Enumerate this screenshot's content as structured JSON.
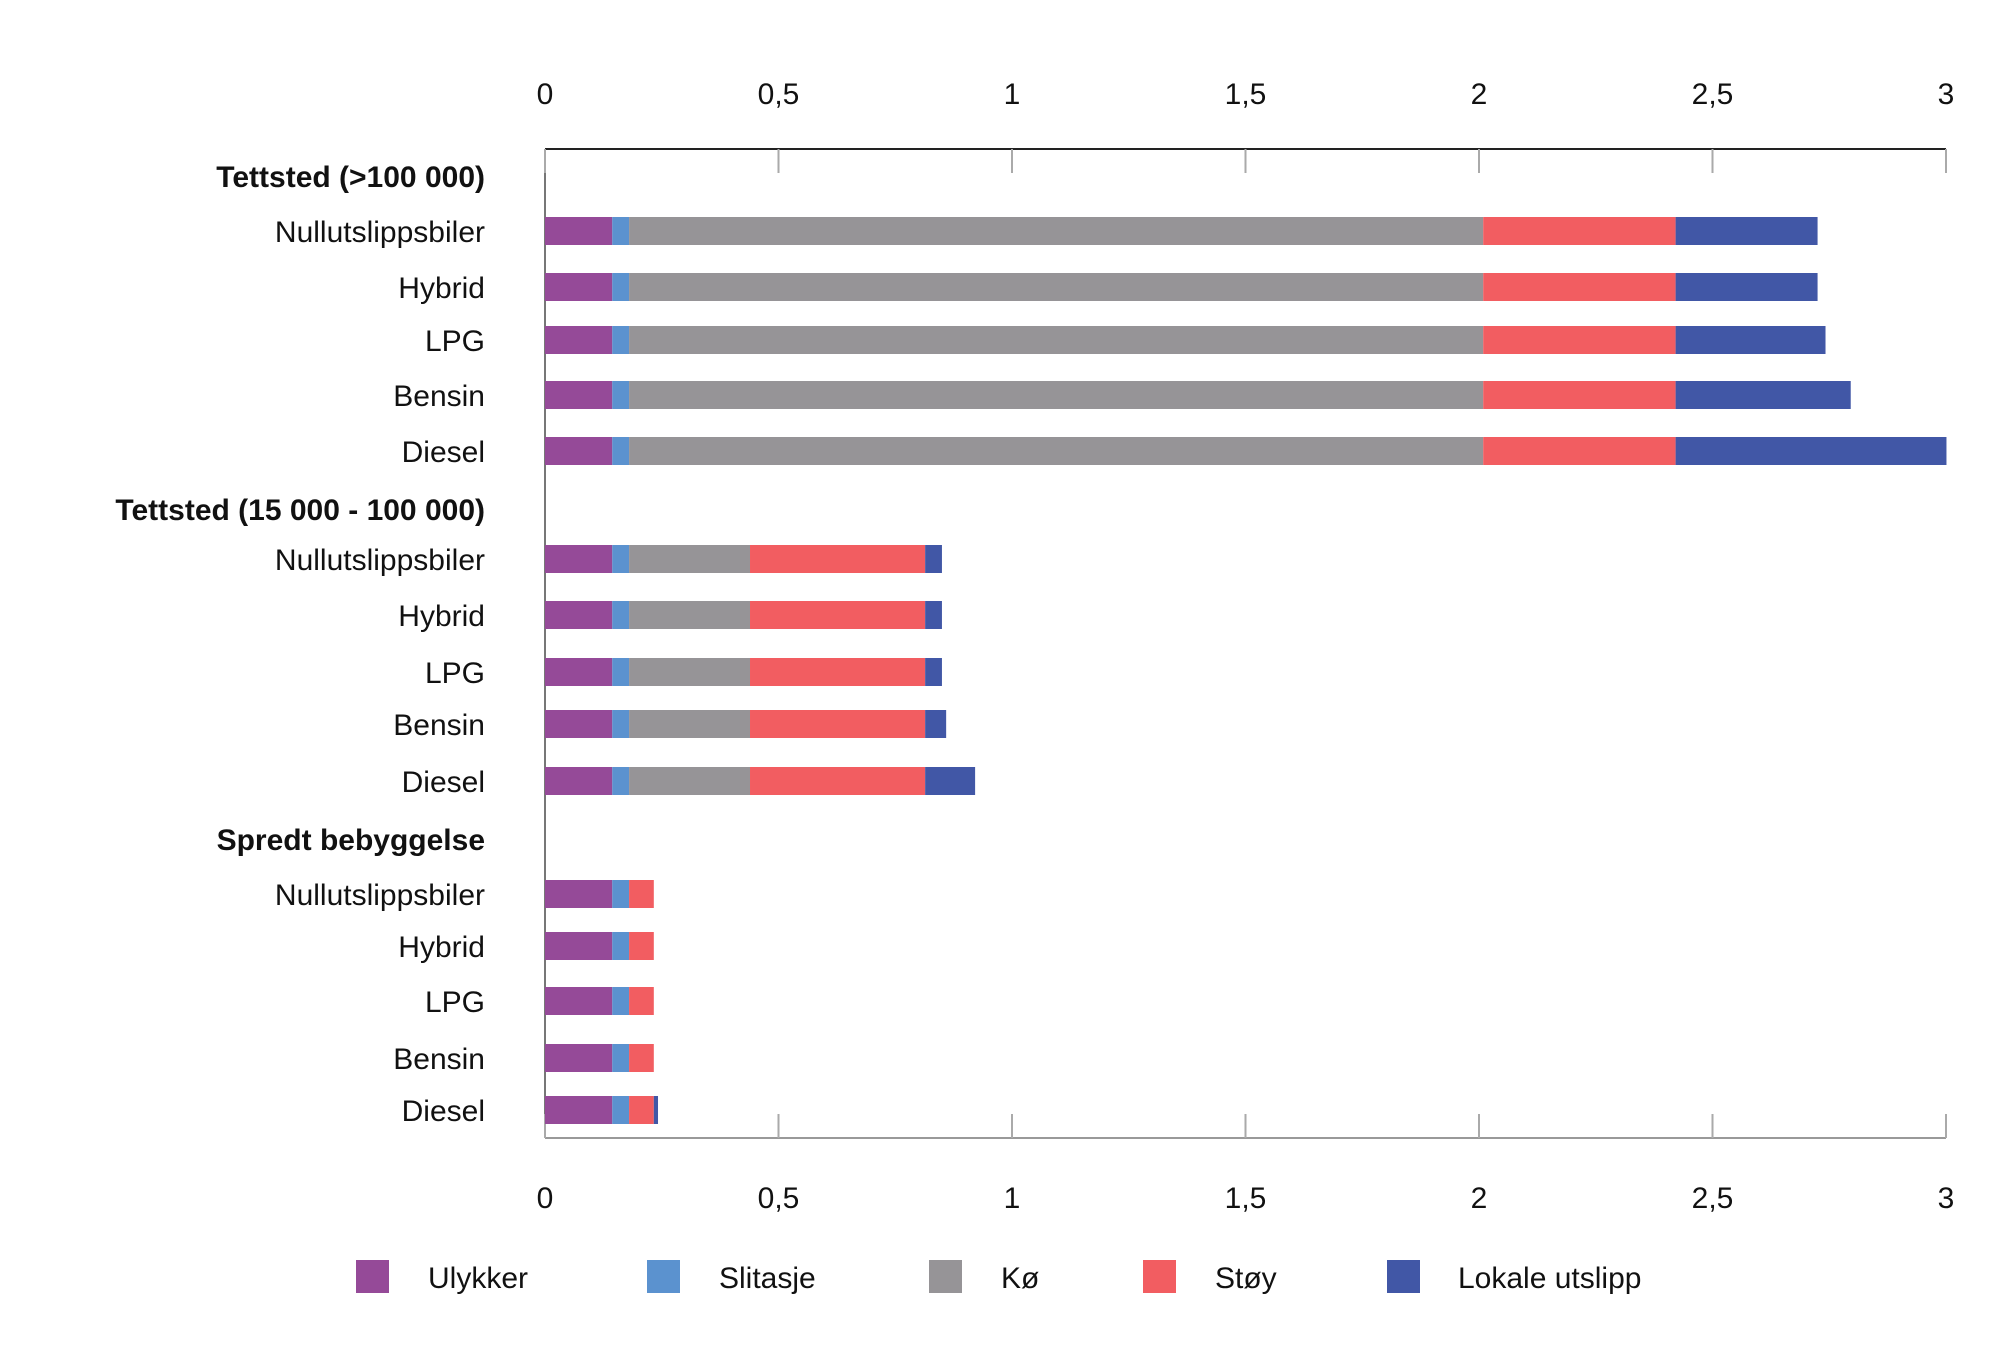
{
  "chart_data": {
    "type": "bar",
    "orientation": "horizontal",
    "stacked": true,
    "xlim": [
      0,
      3
    ],
    "x_ticks": [
      "0",
      "0,5",
      "1",
      "1,5",
      "2",
      "2,5",
      "3"
    ],
    "x_tick_values": [
      0,
      0.5,
      1,
      1.5,
      2,
      2.5,
      3
    ],
    "axis_labels_top_and_bottom": true,
    "grid": false,
    "legend_position": "bottom",
    "groups": [
      {
        "title": "Tettsted (>100 000)",
        "categories": [
          "Nullutslippsbiler",
          "Hybrid",
          "LPG",
          "Bensin",
          "Diesel"
        ]
      },
      {
        "title": "Tettsted (15 000 - 100 000)",
        "categories": [
          "Nullutslippsbiler",
          "Hybrid",
          "LPG",
          "Bensin",
          "Diesel"
        ]
      },
      {
        "title": "Spredt bebyggelse",
        "categories": [
          "Nullutslippsbiler",
          "Hybrid",
          "LPG",
          "Bensin",
          "Diesel"
        ]
      }
    ],
    "series": [
      {
        "name": "Ulykker",
        "color": "#954a98",
        "values": [
          [
            0.144,
            0.144,
            0.144,
            0.144,
            0.144
          ],
          [
            0.144,
            0.144,
            0.144,
            0.144,
            0.144
          ],
          [
            0.144,
            0.144,
            0.144,
            0.144,
            0.144
          ]
        ]
      },
      {
        "name": "Slitasje",
        "color": "#5b92cf",
        "values": [
          [
            0.036,
            0.036,
            0.036,
            0.036,
            0.036
          ],
          [
            0.036,
            0.036,
            0.036,
            0.036,
            0.036
          ],
          [
            0.036,
            0.036,
            0.036,
            0.036,
            0.036
          ]
        ]
      },
      {
        "name": "Kø",
        "color": "#969497",
        "values": [
          [
            1.829,
            1.829,
            1.829,
            1.829,
            1.829
          ],
          [
            0.259,
            0.259,
            0.259,
            0.259,
            0.259
          ],
          [
            0,
            0,
            0,
            0,
            0
          ]
        ]
      },
      {
        "name": "Støy",
        "color": "#f25d61",
        "values": [
          [
            0.412,
            0.412,
            0.412,
            0.412,
            0.412
          ],
          [
            0.375,
            0.375,
            0.375,
            0.375,
            0.375
          ],
          [
            0.053,
            0.053,
            0.053,
            0.053,
            0.053
          ]
        ]
      },
      {
        "name": "Lokale utslipp",
        "color": "#4157a6",
        "values": [
          [
            0.304,
            0.304,
            0.321,
            0.375,
            0.58
          ],
          [
            0.036,
            0.036,
            0.036,
            0.045,
            0.107
          ],
          [
            0,
            0,
            0,
            0,
            0.009
          ]
        ]
      }
    ]
  }
}
